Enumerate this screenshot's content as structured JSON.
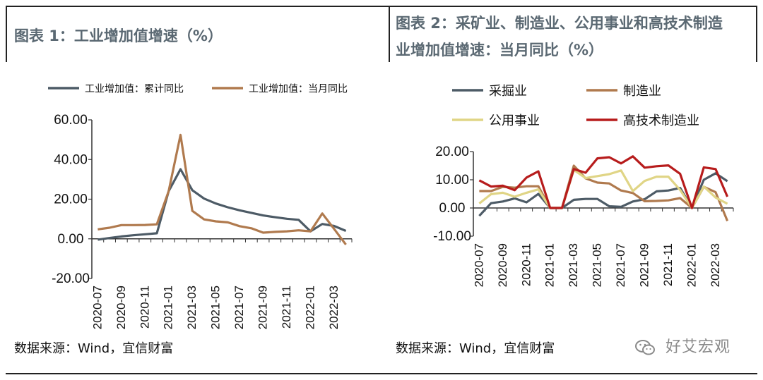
{
  "left_panel": {
    "title": "图表 1：工业增加值增速（%）",
    "source": "数据来源：Wind，宜信财富"
  },
  "right_panel": {
    "title_line1": "图表 2：采矿业、制造业、公用事业和高技术制造",
    "title_line2": "业增加值增速：当月同比（%）",
    "source": "数据来源：Wind，宜信财富"
  },
  "watermark": {
    "text": "好艾宏观",
    "icon": "wechat-icon"
  },
  "chart_data": [
    {
      "type": "line",
      "title": "图表 1：工业增加值增速（%）",
      "x": [
        "2020-07",
        "2020-08",
        "2020-09",
        "2020-10",
        "2020-11",
        "2020-12",
        "2021-01",
        "2021-02",
        "2021-03",
        "2021-04",
        "2021-05",
        "2021-06",
        "2021-07",
        "2021-08",
        "2021-09",
        "2021-10",
        "2021-11",
        "2021-12",
        "2022-01",
        "2022-02",
        "2022-03",
        "2022-04"
      ],
      "x_tick_labels": [
        "2020-07",
        "2020-09",
        "2020-11",
        "2021-01",
        "2021-03",
        "2021-05",
        "2021-07",
        "2021-09",
        "2021-11",
        "2022-01",
        "2022-03"
      ],
      "y_ticks": [
        "60.00",
        "40.00",
        "20.00",
        "0.00",
        "-20.00"
      ],
      "ylim": [
        -20,
        60
      ],
      "legend_position": "top",
      "grid": false,
      "series": [
        {
          "name": "工业增加值：累计同比",
          "color": "#4d5b66",
          "values": [
            -0.4,
            0.4,
            1.2,
            1.8,
            2.3,
            2.8,
            24.0,
            35.1,
            24.5,
            20.3,
            17.8,
            15.9,
            14.4,
            13.1,
            11.8,
            10.9,
            10.1,
            9.6,
            3.8,
            7.5,
            6.5,
            4.0
          ]
        },
        {
          "name": "工业增加值：当月同比",
          "color": "#b07a4e",
          "values": [
            4.8,
            5.6,
            6.9,
            6.9,
            7.0,
            7.3,
            24.0,
            52.4,
            14.1,
            9.8,
            8.8,
            8.3,
            6.4,
            5.3,
            3.1,
            3.5,
            3.8,
            4.3,
            3.8,
            12.8,
            5.0,
            -2.9
          ]
        }
      ]
    },
    {
      "type": "line",
      "title": "图表 2：采矿业、制造业、公用事业和高技术制造业增加值增速：当月同比（%）",
      "x": [
        "2020-07",
        "2020-08",
        "2020-09",
        "2020-10",
        "2020-11",
        "2020-12",
        "2021-01",
        "2021-02",
        "2021-03",
        "2021-04",
        "2021-05",
        "2021-06",
        "2021-07",
        "2021-08",
        "2021-09",
        "2021-10",
        "2021-11",
        "2021-12",
        "2022-01",
        "2022-02",
        "2022-03",
        "2022-04"
      ],
      "x_tick_labels": [
        "2020-07",
        "2020-09",
        "2020-11",
        "2021-01",
        "2021-03",
        "2021-05",
        "2021-07",
        "2021-09",
        "2021-11",
        "2022-01",
        "2022-03"
      ],
      "y_ticks": [
        "20.00",
        "10.00",
        "0.00",
        "-10.00"
      ],
      "ylim": [
        -10,
        20
      ],
      "legend_position": "top",
      "grid": false,
      "series": [
        {
          "name": "采掘业",
          "color": "#4d5b66",
          "values": [
            -2.8,
            1.7,
            2.3,
            3.4,
            2.0,
            5.0,
            0.0,
            0.0,
            2.9,
            3.2,
            3.2,
            0.6,
            0.4,
            2.3,
            3.1,
            5.9,
            6.2,
            7.1,
            0.0,
            10.0,
            12.3,
            9.5
          ]
        },
        {
          "name": "制造业",
          "color": "#b07a4e",
          "values": [
            6.0,
            6.0,
            7.5,
            7.2,
            7.7,
            7.7,
            0.0,
            0.0,
            15.0,
            10.5,
            9.0,
            8.7,
            6.2,
            5.3,
            2.4,
            2.5,
            2.7,
            3.5,
            0.0,
            7.5,
            5.6,
            -4.6
          ]
        },
        {
          "name": "公用事业",
          "color": "#e0d586",
          "values": [
            1.6,
            4.9,
            5.4,
            4.0,
            5.4,
            6.6,
            0.0,
            0.0,
            13.5,
            10.6,
            11.3,
            12.0,
            13.3,
            6.0,
            9.6,
            11.1,
            11.1,
            6.4,
            0.0,
            7.6,
            3.7,
            1.5
          ]
        },
        {
          "name": "高技术制造业",
          "color": "#b71c1c",
          "values": [
            9.8,
            7.6,
            7.9,
            6.3,
            10.8,
            13.0,
            0.0,
            0.0,
            13.8,
            12.5,
            17.6,
            18.0,
            15.8,
            18.3,
            14.3,
            14.8,
            15.1,
            12.1,
            0.0,
            14.4,
            13.8,
            4.0
          ]
        }
      ]
    }
  ]
}
